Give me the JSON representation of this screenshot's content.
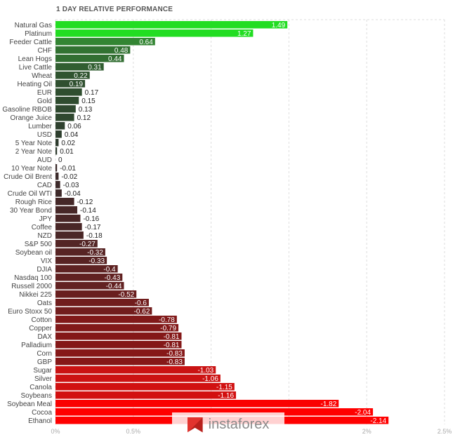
{
  "chart_data": {
    "type": "bar",
    "orientation": "horizontal",
    "title": "1 DAY RELATIVE PERFORMANCE",
    "categories": [
      "Natural Gas",
      "Platinum",
      "Feeder Cattle",
      "CHF",
      "Lean Hogs",
      "Live Cattle",
      "Wheat",
      "Heating Oil",
      "EUR",
      "Gold",
      "Gasoline RBOB",
      "Orange Juice",
      "Lumber",
      "USD",
      "5 Year Note",
      "2 Year Note",
      "AUD",
      "10 Year Note",
      "Crude Oil Brent",
      "CAD",
      "Crude Oil WTI",
      "Rough Rice",
      "30 Year Bond",
      "JPY",
      "Coffee",
      "NZD",
      "S&P 500",
      "Soybean oil",
      "VIX",
      "DJIA",
      "Nasdaq 100",
      "Russell 2000",
      "Nikkei 225",
      "Oats",
      "Euro Stoxx 50",
      "Cotton",
      "Copper",
      "DAX",
      "Palladium",
      "Corn",
      "GBP",
      "Sugar",
      "Silver",
      "Canola",
      "Soybeans",
      "Soybean Meal",
      "Cocoa",
      "Ethanol"
    ],
    "values": [
      1.49,
      1.27,
      0.64,
      0.48,
      0.44,
      0.31,
      0.22,
      0.19,
      0.17,
      0.15,
      0.13,
      0.12,
      0.06,
      0.04,
      0.02,
      0.01,
      0,
      -0.01,
      -0.02,
      -0.03,
      -0.04,
      -0.12,
      -0.14,
      -0.16,
      -0.17,
      -0.18,
      -0.27,
      -0.32,
      -0.33,
      -0.4,
      -0.43,
      -0.44,
      -0.52,
      -0.6,
      -0.62,
      -0.78,
      -0.79,
      -0.81,
      -0.81,
      -0.83,
      -0.83,
      -1.03,
      -1.06,
      -1.15,
      -1.16,
      -1.82,
      -2.04,
      -2.14
    ],
    "value_labels": [
      "1.49",
      "1.27",
      "0.64",
      "0.48",
      "0.44",
      "0.31",
      "0.22",
      "0.19",
      "0.17",
      "0.15",
      "0.13",
      "0.12",
      "0.06",
      "0.04",
      "0.02",
      "0.01",
      "0",
      "-0.01",
      "-0.02",
      "-0.03",
      "-0.04",
      "-0.12",
      "-0.14",
      "-0.16",
      "-0.17",
      "-0.18",
      "-0.27",
      "-0.32",
      "-0.33",
      "-0.4",
      "-0.43",
      "-0.44",
      "-0.52",
      "-0.6",
      "-0.62",
      "-0.78",
      "-0.79",
      "-0.81",
      "-0.81",
      "-0.83",
      "-0.83",
      "-1.03",
      "-1.06",
      "-1.15",
      "-1.16",
      "-1.82",
      "-2.04",
      "-2.14"
    ],
    "xticks": [
      0,
      0.5,
      1,
      1.5,
      2,
      2.5
    ],
    "xtick_labels": [
      "0%",
      "0.5%",
      "",
      "",
      "2%",
      "2.5%"
    ],
    "xlim": [
      0,
      2.5
    ],
    "scale": "absolute value bar length",
    "grid": true,
    "colors": {
      "positive_strong": "#22dd22",
      "positive_mid": "#2f7a2f",
      "positive_weak": "#2e3a2e",
      "negative_weak": "#3a2b2b",
      "negative_mid": "#7a2020",
      "negative_strong": "#ff0000"
    }
  },
  "watermark": {
    "text": "instaforex"
  }
}
